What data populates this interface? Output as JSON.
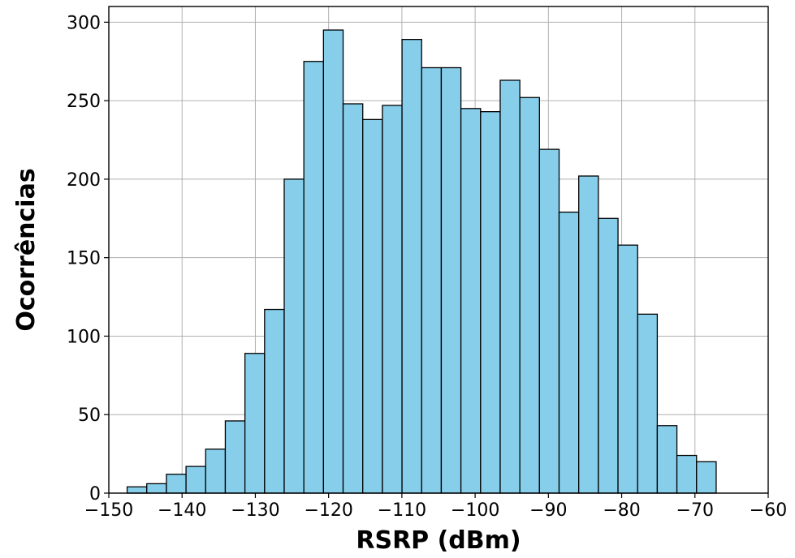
{
  "chart_data": {
    "type": "bar",
    "subtype": "histogram",
    "xlabel": "RSRP (dBm)",
    "ylabel": "Ocorrências",
    "xlim": [
      -150,
      -60
    ],
    "ylim": [
      0,
      310
    ],
    "xticks": [
      -150,
      -140,
      -130,
      -120,
      -110,
      -100,
      -90,
      -80,
      -70,
      -60
    ],
    "yticks": [
      0,
      50,
      100,
      150,
      200,
      250,
      300
    ],
    "xtick_labels": [
      "−150",
      "−140",
      "−130",
      "−120",
      "−110",
      "−100",
      "−90",
      "−80",
      "−70",
      "−60"
    ],
    "ytick_labels": [
      "0",
      "50",
      "100",
      "150",
      "200",
      "250",
      "300"
    ],
    "grid": true,
    "bar_color": "#87ceeb",
    "edge_color": "#000000",
    "bins": [
      {
        "x0": -147.5,
        "x1": -144.82,
        "count": 4
      },
      {
        "x0": -144.82,
        "x1": -142.14,
        "count": 6
      },
      {
        "x0": -142.14,
        "x1": -139.46,
        "count": 12
      },
      {
        "x0": -139.46,
        "x1": -136.78,
        "count": 17
      },
      {
        "x0": -136.78,
        "x1": -134.1,
        "count": 28
      },
      {
        "x0": -134.1,
        "x1": -131.42,
        "count": 46
      },
      {
        "x0": -131.42,
        "x1": -128.74,
        "count": 89
      },
      {
        "x0": -128.74,
        "x1": -126.06,
        "count": 117
      },
      {
        "x0": -126.06,
        "x1": -123.38,
        "count": 200
      },
      {
        "x0": -123.38,
        "x1": -120.7,
        "count": 275
      },
      {
        "x0": -120.7,
        "x1": -118.02,
        "count": 295
      },
      {
        "x0": -118.02,
        "x1": -115.34,
        "count": 248
      },
      {
        "x0": -115.34,
        "x1": -112.66,
        "count": 238
      },
      {
        "x0": -112.66,
        "x1": -109.98,
        "count": 247
      },
      {
        "x0": -109.98,
        "x1": -107.3,
        "count": 289
      },
      {
        "x0": -107.3,
        "x1": -104.62,
        "count": 271
      },
      {
        "x0": -104.62,
        "x1": -101.94,
        "count": 271
      },
      {
        "x0": -101.94,
        "x1": -99.26,
        "count": 245
      },
      {
        "x0": -99.26,
        "x1": -96.58,
        "count": 243
      },
      {
        "x0": -96.58,
        "x1": -93.9,
        "count": 263
      },
      {
        "x0": -93.9,
        "x1": -91.22,
        "count": 252
      },
      {
        "x0": -91.22,
        "x1": -88.54,
        "count": 219
      },
      {
        "x0": -88.54,
        "x1": -85.86,
        "count": 179
      },
      {
        "x0": -85.86,
        "x1": -83.18,
        "count": 202
      },
      {
        "x0": -83.18,
        "x1": -80.5,
        "count": 175
      },
      {
        "x0": -80.5,
        "x1": -77.82,
        "count": 158
      },
      {
        "x0": -77.82,
        "x1": -75.14,
        "count": 114
      },
      {
        "x0": -75.14,
        "x1": -72.46,
        "count": 43
      },
      {
        "x0": -72.46,
        "x1": -69.78,
        "count": 24
      },
      {
        "x0": -69.78,
        "x1": -67.1,
        "count": 20
      }
    ]
  }
}
